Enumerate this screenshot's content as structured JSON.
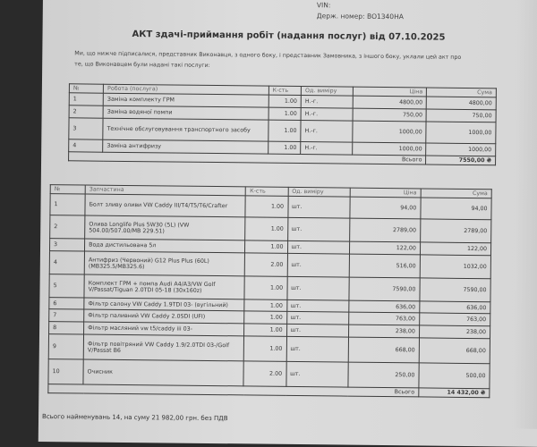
{
  "vehicle": {
    "vin_label": "VIN:",
    "plate_label": "Держ. номер:",
    "plate": "ВО1340НА"
  },
  "title": "АКТ здачі-приймання робіт (надання послуг) від 07.10.2025",
  "intro": "Ми, що нижче підписалися, представник Виконавця, з одного боку, і представник Замовника, з іншого боку, уклали цей акт про те, що Виконавцем були надані такі послуги:",
  "works": {
    "headers": [
      "№",
      "Робота (послуга)",
      "К-сть",
      "Од. виміру",
      "Ціна",
      "Сума"
    ],
    "rows": [
      [
        "1",
        "Заміна комплекту ГРМ",
        "1.00",
        "Н.-г.",
        "4800,00",
        "4800,00"
      ],
      [
        "2",
        "Заміна водяної помпи",
        "1.00",
        "Н.-г.",
        "750,00",
        "750,00"
      ],
      [
        "3",
        "Технічне обслуговування транспортного засобу",
        "1.00",
        "Н.-г.",
        "1000,00",
        "1000,00"
      ],
      [
        "4",
        "Заміна антифризу",
        "1.00",
        "Н.-г.",
        "1000,00",
        "1000,00"
      ]
    ],
    "total_label": "Всього",
    "total": "7550,00 ₴"
  },
  "parts": {
    "headers": [
      "№",
      "Запчастина",
      "К-сть",
      "Од. виміру",
      "Ціна",
      "Сума"
    ],
    "rows": [
      [
        "1",
        "Болт зливу оливи VW Caddy III/T4/T5/T6/Crafter",
        "1.00",
        "шт.",
        "94,00",
        "94,00"
      ],
      [
        "2",
        "Олива Longlife Plus 5W30 (5L) (VW 504.00/507.00/MB 229.51)",
        "1.00",
        "шт.",
        "2789,00",
        "2789,00"
      ],
      [
        "3",
        "Вода дистильована 5л",
        "1.00",
        "шт.",
        "122,00",
        "122,00"
      ],
      [
        "4",
        "Антифриз (Червоний) G12 Plus Plus (60L) (MB325.5/MB325.6)",
        "2.00",
        "шт.",
        "516,00",
        "1032,00"
      ],
      [
        "5",
        "Комплект ГРМ + помпа Audi A4/A3/VW Golf V/Passat/Tiguan 2.0TDI 05-18 (30x160z)",
        "1.00",
        "шт.",
        "7590,00",
        "7590,00"
      ],
      [
        "6",
        "Фільтр салону VW Caddy 1.9TDI 03- (вугільний)",
        "1.00",
        "шт.",
        "636,00",
        "636,00"
      ],
      [
        "7",
        "Фільтр паливний VW Caddy 2.0SDI (UFI)",
        "1.00",
        "шт.",
        "763,00",
        "763,00"
      ],
      [
        "8",
        "Фільтр масляний vw t5/caddy iii 03-",
        "1.00",
        "шт.",
        "238,00",
        "238,00"
      ],
      [
        "9",
        "Фільтр повітряний VW Caddy 1.9/2.0TDI 03-/Golf V/Passat B6",
        "1.00",
        "шт.",
        "668,00",
        "668,00"
      ],
      [
        "10",
        "Очисник",
        "2.00",
        "шт.",
        "250,00",
        "500,00"
      ]
    ],
    "total_label": "Всього",
    "total": "14 432,00 ₴"
  },
  "footer": "Всього найменувань 14, на суму 21 982,00 грн. без ПДВ"
}
